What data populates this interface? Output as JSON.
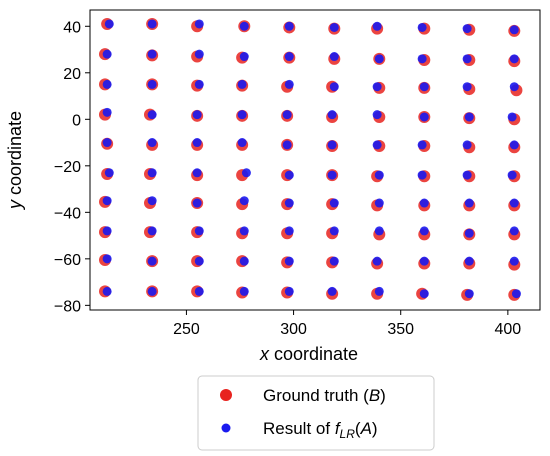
{
  "chart_data": {
    "type": "scatter",
    "title": "",
    "xlabel": {
      "var": "x",
      "text": " coordinate"
    },
    "ylabel": {
      "var": "y",
      "text": " coordinate"
    },
    "xlim": [
      205,
      415
    ],
    "ylim": [
      -82,
      47
    ],
    "x_ticks": [
      250,
      300,
      350,
      400
    ],
    "y_ticks": [
      -80,
      -60,
      -40,
      -20,
      0,
      20,
      40
    ],
    "x_tick_labels": [
      "250",
      "300",
      "350",
      "400"
    ],
    "y_tick_labels": [
      "−80",
      "−60",
      "−40",
      "−20",
      "0",
      "20",
      "40"
    ],
    "grid": false,
    "legend_position": "bottom-center, outside plot",
    "colors": {
      "ground_truth": "#e8231f",
      "result": "#1a1aef"
    },
    "series": [
      {
        "name": "Ground truth (B)",
        "legend_parts": [
          "Ground truth (",
          "B",
          ")"
        ],
        "marker": "circle-large",
        "points": [
          [
            213,
            41
          ],
          [
            234,
            41
          ],
          [
            255,
            40
          ],
          [
            277,
            40
          ],
          [
            298,
            39.5
          ],
          [
            319,
            39
          ],
          [
            339,
            39
          ],
          [
            361,
            39
          ],
          [
            382,
            38.5
          ],
          [
            403,
            38
          ],
          [
            212,
            28
          ],
          [
            234,
            27.5
          ],
          [
            255,
            27
          ],
          [
            276,
            26.5
          ],
          [
            298,
            26.5
          ],
          [
            319,
            26
          ],
          [
            340,
            26
          ],
          [
            361,
            25.5
          ],
          [
            382,
            25.5
          ],
          [
            403,
            25
          ],
          [
            212,
            15
          ],
          [
            234,
            15
          ],
          [
            255,
            14.5
          ],
          [
            276,
            14.5
          ],
          [
            297,
            14
          ],
          [
            318,
            14
          ],
          [
            340,
            13.5
          ],
          [
            361,
            13.5
          ],
          [
            382,
            13
          ],
          [
            404,
            12.5
          ],
          [
            212,
            2
          ],
          [
            233,
            2
          ],
          [
            255,
            1.5
          ],
          [
            276,
            1.5
          ],
          [
            297,
            1.5
          ],
          [
            318,
            1
          ],
          [
            340,
            1
          ],
          [
            361,
            1
          ],
          [
            382,
            0.5
          ],
          [
            403,
            0
          ],
          [
            213,
            -10.5
          ],
          [
            234,
            -11
          ],
          [
            255,
            -11
          ],
          [
            276,
            -11
          ],
          [
            297,
            -11
          ],
          [
            318,
            -11.5
          ],
          [
            340,
            -11.5
          ],
          [
            361,
            -11.5
          ],
          [
            382,
            -12
          ],
          [
            403,
            -12
          ],
          [
            213,
            -23.5
          ],
          [
            233,
            -23.5
          ],
          [
            255,
            -24
          ],
          [
            276,
            -24
          ],
          [
            297,
            -24
          ],
          [
            318,
            -24
          ],
          [
            339,
            -24.5
          ],
          [
            361,
            -24.5
          ],
          [
            382,
            -24.5
          ],
          [
            403,
            -24.5
          ],
          [
            212,
            -35.5
          ],
          [
            233,
            -36
          ],
          [
            255,
            -36
          ],
          [
            276,
            -36.5
          ],
          [
            297,
            -36.5
          ],
          [
            318,
            -36.5
          ],
          [
            339,
            -37
          ],
          [
            361,
            -37
          ],
          [
            382,
            -37
          ],
          [
            403,
            -37
          ],
          [
            212,
            -48.5
          ],
          [
            233,
            -48.5
          ],
          [
            255,
            -48.5
          ],
          [
            276,
            -49
          ],
          [
            297,
            -49
          ],
          [
            318,
            -49
          ],
          [
            340,
            -49.5
          ],
          [
            361,
            -49.5
          ],
          [
            382,
            -49.5
          ],
          [
            403,
            -49.5
          ],
          [
            212,
            -60.5
          ],
          [
            234,
            -61
          ],
          [
            255,
            -61
          ],
          [
            276,
            -61
          ],
          [
            297,
            -61.5
          ],
          [
            318,
            -61.5
          ],
          [
            339,
            -62
          ],
          [
            361,
            -62
          ],
          [
            382,
            -62
          ],
          [
            403,
            -62.5
          ],
          [
            212,
            -74
          ],
          [
            234,
            -74
          ],
          [
            255,
            -74
          ],
          [
            276,
            -74.5
          ],
          [
            297,
            -74.5
          ],
          [
            318,
            -75
          ],
          [
            339,
            -75
          ],
          [
            360,
            -75
          ],
          [
            381,
            -75.5
          ],
          [
            403,
            -75.5
          ]
        ]
      },
      {
        "name": "Result of f_LR(A)",
        "legend_parts": [
          "Result of ",
          "f",
          "LR",
          "(",
          "A",
          ")"
        ],
        "marker": "circle-small",
        "points": [
          [
            214,
            41
          ],
          [
            234,
            41
          ],
          [
            256,
            41
          ],
          [
            277,
            40
          ],
          [
            298,
            40
          ],
          [
            319,
            39.5
          ],
          [
            339,
            40
          ],
          [
            360,
            39.5
          ],
          [
            381,
            39
          ],
          [
            403,
            38.5
          ],
          [
            213,
            28
          ],
          [
            234,
            28
          ],
          [
            256,
            28
          ],
          [
            277,
            27
          ],
          [
            298,
            27
          ],
          [
            319,
            27
          ],
          [
            340,
            26
          ],
          [
            360,
            26
          ],
          [
            381,
            26
          ],
          [
            403,
            26
          ],
          [
            213,
            15
          ],
          [
            234,
            15
          ],
          [
            256,
            15
          ],
          [
            276,
            15
          ],
          [
            298,
            15
          ],
          [
            319,
            14
          ],
          [
            339,
            14
          ],
          [
            361,
            14
          ],
          [
            381,
            14
          ],
          [
            403,
            14
          ],
          [
            213,
            3
          ],
          [
            234,
            2
          ],
          [
            255,
            2
          ],
          [
            276,
            2
          ],
          [
            297,
            2
          ],
          [
            318,
            2
          ],
          [
            339,
            2
          ],
          [
            361,
            1
          ],
          [
            382,
            1
          ],
          [
            402,
            1
          ],
          [
            213,
            -10
          ],
          [
            234,
            -10
          ],
          [
            255,
            -10
          ],
          [
            276,
            -10
          ],
          [
            297,
            -11
          ],
          [
            318,
            -11
          ],
          [
            339,
            -11
          ],
          [
            360,
            -11
          ],
          [
            381,
            -11
          ],
          [
            403,
            -11
          ],
          [
            214,
            -23
          ],
          [
            234,
            -23
          ],
          [
            255,
            -23
          ],
          [
            278,
            -23
          ],
          [
            298,
            -24
          ],
          [
            318,
            -24
          ],
          [
            340,
            -24
          ],
          [
            360,
            -24
          ],
          [
            381,
            -24
          ],
          [
            402,
            -24
          ],
          [
            213,
            -35
          ],
          [
            234,
            -35
          ],
          [
            255,
            -36
          ],
          [
            277,
            -35
          ],
          [
            298,
            -36
          ],
          [
            319,
            -36
          ],
          [
            340,
            -36
          ],
          [
            361,
            -36
          ],
          [
            382,
            -36
          ],
          [
            403,
            -36
          ],
          [
            213,
            -48
          ],
          [
            234,
            -48
          ],
          [
            256,
            -48
          ],
          [
            277,
            -48
          ],
          [
            298,
            -48
          ],
          [
            319,
            -48
          ],
          [
            340,
            -48
          ],
          [
            361,
            -48
          ],
          [
            382,
            -49
          ],
          [
            403,
            -48
          ],
          [
            213,
            -60
          ],
          [
            234,
            -61
          ],
          [
            256,
            -61
          ],
          [
            277,
            -61
          ],
          [
            298,
            -61
          ],
          [
            319,
            -61
          ],
          [
            339,
            -61
          ],
          [
            361,
            -61
          ],
          [
            382,
            -61
          ],
          [
            403,
            -61
          ],
          [
            213,
            -74
          ],
          [
            234,
            -74
          ],
          [
            256,
            -74
          ],
          [
            277,
            -74
          ],
          [
            298,
            -74
          ],
          [
            318,
            -74
          ],
          [
            340,
            -74
          ],
          [
            361,
            -75
          ],
          [
            382,
            -75
          ],
          [
            404,
            -75
          ]
        ]
      }
    ]
  }
}
